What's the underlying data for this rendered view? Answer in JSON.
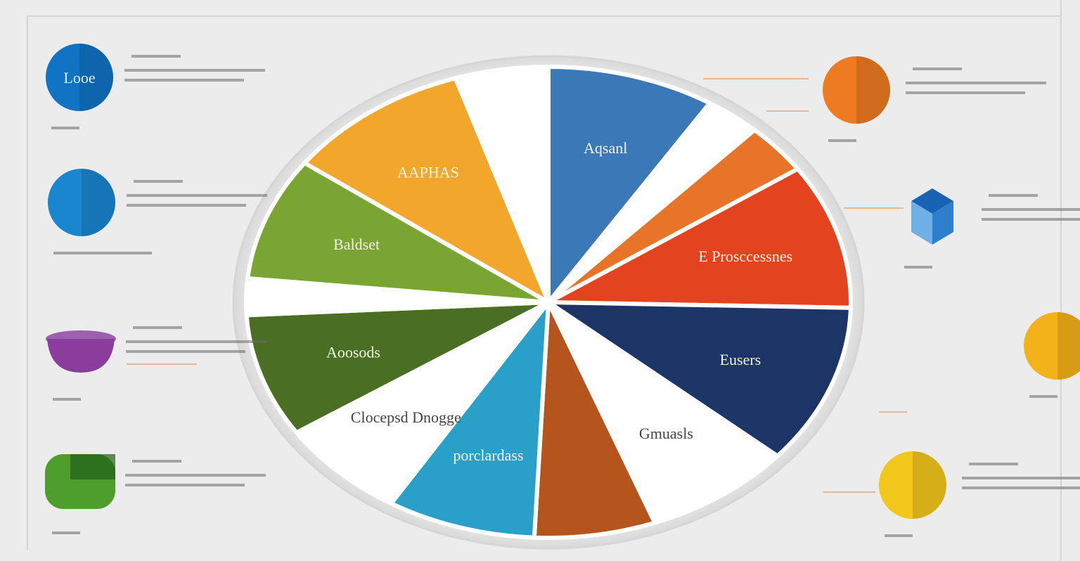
{
  "chart_data": {
    "type": "pie",
    "title": "",
    "slices": [
      {
        "label": "Aqsanl",
        "value": 9,
        "color": "#3a78b8"
      },
      {
        "label": "",
        "value": 3,
        "color": "#ffffff"
      },
      {
        "label": "",
        "value": 3.5,
        "color": "#e8742a"
      },
      {
        "label": "E Prosccessnes",
        "value": 10,
        "color": "#e4431f"
      },
      {
        "label": "Eusers",
        "value": 11,
        "color": "#1d3466"
      },
      {
        "label": "Gmuasls",
        "value": 8,
        "color": "#ffffff"
      },
      {
        "label": "",
        "value": 6.5,
        "color": "#b5541c"
      },
      {
        "label": "porclardass",
        "value": 8,
        "color": "#2aa0c9"
      },
      {
        "label": "Clocepsd Dnogge",
        "value": 7,
        "color": "#ffffff"
      },
      {
        "label": "Aoosods",
        "value": 8.5,
        "color": "#4a6f22"
      },
      {
        "label": "",
        "value": 2.5,
        "color": "#ffffff"
      },
      {
        "label": "Baldset",
        "value": 8.5,
        "color": "#7aa532"
      },
      {
        "label": "AAPHAS",
        "value": 10,
        "color": "#f2a72c"
      },
      {
        "label": "",
        "value": 5,
        "color": "#ffffff"
      }
    ],
    "legend_placement": "left and right of pie"
  },
  "callouts": {
    "left": [
      {
        "badge_text": "Looe",
        "color": "#1173c4",
        "caption": "",
        "heading": "",
        "shape": "circle"
      },
      {
        "badge_text": "",
        "color": "#1a86d0",
        "caption": "",
        "heading": "",
        "shape": "circle"
      },
      {
        "badge_text": "",
        "color": "#8a3d9c",
        "caption": "",
        "heading": "",
        "shape": "bowl"
      },
      {
        "badge_text": "",
        "color": "#4e9e2e",
        "caption": "",
        "heading": "",
        "shape": "box"
      }
    ],
    "right": [
      {
        "badge_text": "",
        "color": "#ee7a22",
        "caption": "",
        "heading": "",
        "shape": "circle"
      },
      {
        "badge_text": "",
        "color": "#2d7fce",
        "caption": "",
        "heading": "",
        "shape": "cube"
      },
      {
        "badge_text": "",
        "color": "#f4b21a",
        "caption": "",
        "heading": "",
        "shape": "circle"
      },
      {
        "badge_text": "",
        "color": "#f3c61c",
        "caption": "",
        "heading": "",
        "shape": "circle"
      }
    ]
  }
}
